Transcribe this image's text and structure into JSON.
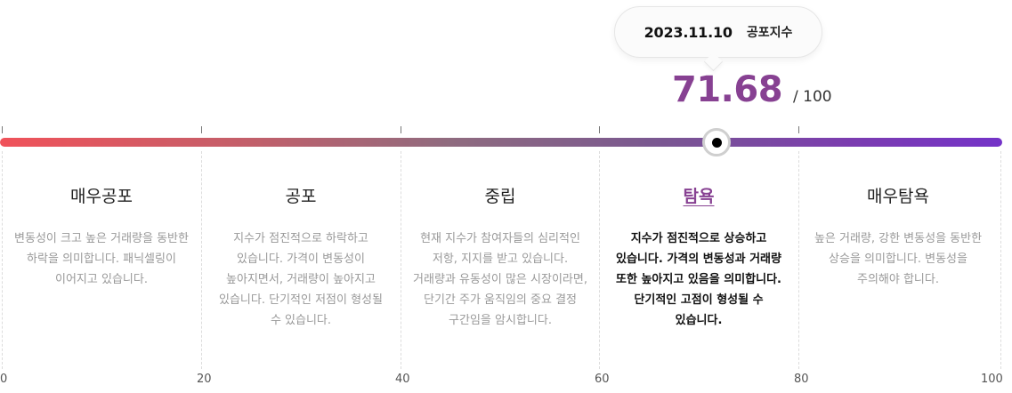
{
  "tooltip": {
    "date": "2023.11.10",
    "label": "공포지수"
  },
  "value": {
    "current": "71.68",
    "max": "/ 100",
    "current_number": 71.68,
    "max_number": 100
  },
  "colors": {
    "accent": "#874192",
    "bar_start": "#f0525a",
    "bar_end": "#7433c8"
  },
  "zones": [
    {
      "title": "매우공포",
      "desc": "변동성이 크고 높은 거래량을 동반한 하락을 의미합니다. 패닉셀링이 이어지고 있습니다.",
      "active": false
    },
    {
      "title": "공포",
      "desc": "지수가 점진적으로 하락하고 있습니다. 가격이 변동성이 높아지면서, 거래량이 높아지고 있습니다. 단기적인 저점이 형성될 수 있습니다.",
      "active": false
    },
    {
      "title": "중립",
      "desc": "현재 지수가 참여자들의 심리적인 저항, 지지를 받고 있습니다. 거래량과 유동성이 많은 시장이라면, 단기간 주가 움직임의 중요 결정 구간임을 암시합니다.",
      "active": false
    },
    {
      "title": "탐욕",
      "desc": "지수가 점진적으로 상승하고 있습니다. 가격의 변동성과 거래량 또한 높아지고 있음을 의미합니다. 단기적인 고점이 형성될 수 있습니다.",
      "active": true
    },
    {
      "title": "매우탐욕",
      "desc": "높은 거래량, 강한 변동성을 동반한 상승을 의미합니다. 변동성을 주의해야 합니다.",
      "active": false
    }
  ],
  "scale": [
    "0",
    "20",
    "40",
    "60",
    "80",
    "100"
  ]
}
